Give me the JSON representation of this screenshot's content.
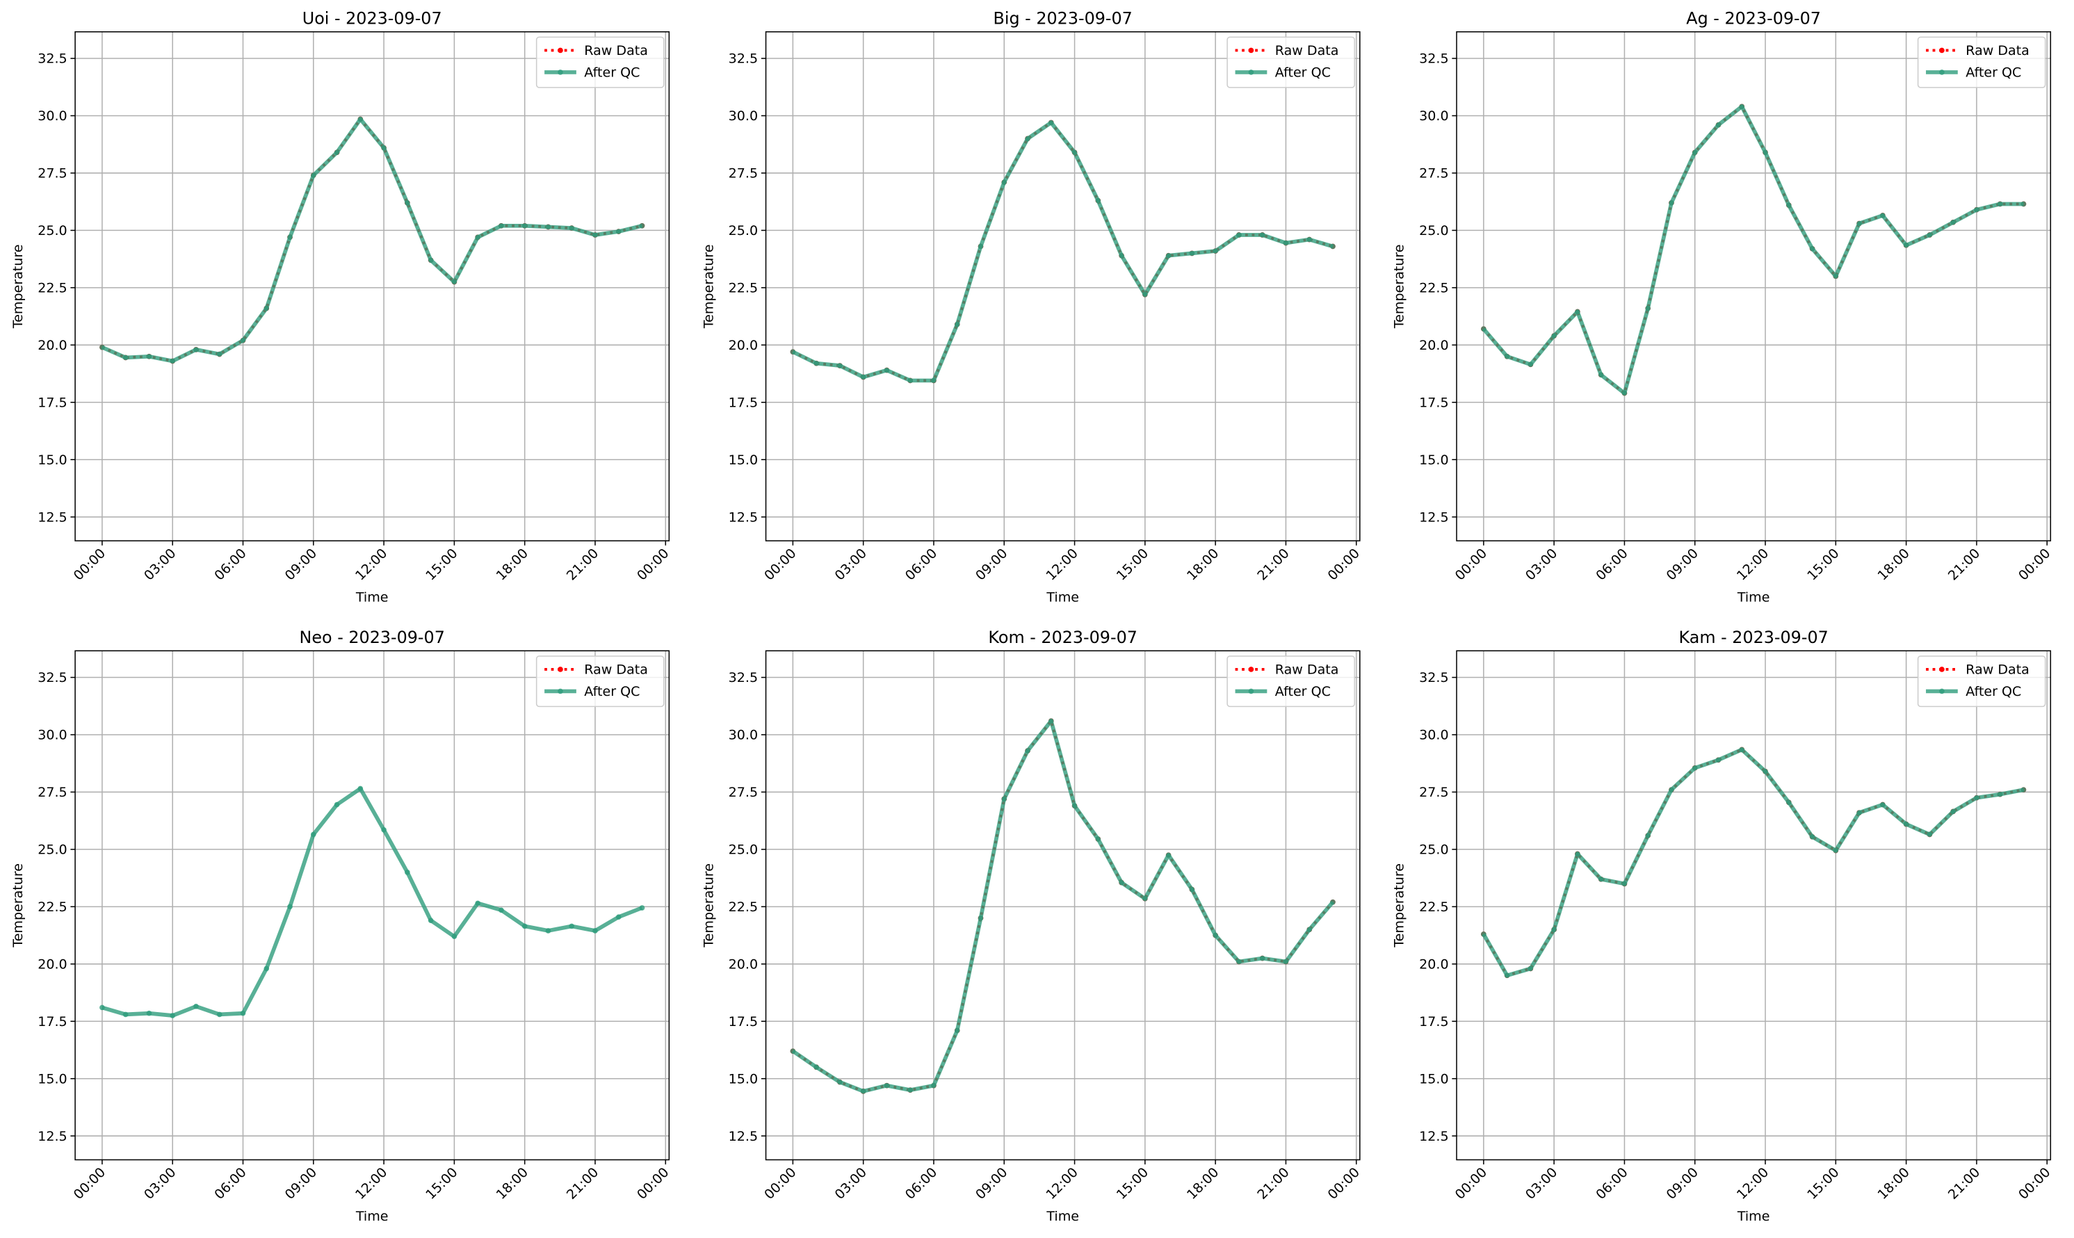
{
  "chart_data": [
    {
      "type": "line",
      "title": "Uoi - 2023-09-07",
      "xlabel": "Time",
      "ylabel": "Temperature",
      "x": [
        0,
        1,
        2,
        3,
        4,
        5,
        6,
        7,
        8,
        9,
        10,
        11,
        12,
        13,
        14,
        15,
        16,
        17,
        18,
        19,
        20,
        21,
        22,
        23
      ],
      "xlim": [
        -1.15,
        24.15
      ],
      "xticks": [
        {
          "value": 0,
          "label": "00:00"
        },
        {
          "value": 3,
          "label": "03:00"
        },
        {
          "value": 6,
          "label": "06:00"
        },
        {
          "value": 9,
          "label": "09:00"
        },
        {
          "value": 12,
          "label": "12:00"
        },
        {
          "value": 15,
          "label": "15:00"
        },
        {
          "value": 18,
          "label": "18:00"
        },
        {
          "value": 21,
          "label": "21:00"
        },
        {
          "value": 24,
          "label": "00:00"
        }
      ],
      "ylim": [
        11.46,
        33.66
      ],
      "yticks": [
        12.5,
        {
          "value": 15,
          "label": "15.0"
        },
        17.5,
        {
          "value": 20,
          "label": "20.0"
        },
        22.5,
        {
          "value": 25,
          "label": "25.0"
        },
        27.5,
        {
          "value": 30,
          "label": "30.0"
        },
        32.5
      ],
      "grid": true,
      "legend": "upper right",
      "series": [
        {
          "name": "Raw Data",
          "color": "#ff0000",
          "values": [
            19.9,
            19.45,
            19.5,
            19.3,
            19.8,
            19.6,
            20.2,
            21.6,
            24.7,
            27.4,
            28.4,
            29.85,
            28.6,
            26.2,
            23.7,
            22.75,
            24.7,
            25.2,
            25.2,
            25.15,
            25.1,
            24.8,
            24.95,
            25.2
          ]
        },
        {
          "name": "After QC",
          "color": "#2e9c7c",
          "values": [
            19.9,
            19.45,
            19.5,
            19.3,
            19.8,
            19.6,
            20.2,
            21.6,
            24.7,
            27.4,
            28.4,
            29.85,
            28.6,
            26.2,
            23.7,
            22.75,
            24.7,
            25.2,
            25.2,
            25.15,
            25.1,
            24.8,
            24.95,
            25.2
          ]
        }
      ]
    },
    {
      "type": "line",
      "title": "Big - 2023-09-07",
      "xlabel": "Time",
      "ylabel": "Temperature",
      "x": [
        0,
        1,
        2,
        3,
        4,
        5,
        6,
        7,
        8,
        9,
        10,
        11,
        12,
        13,
        14,
        15,
        16,
        17,
        18,
        19,
        20,
        21,
        22,
        23
      ],
      "xlim": [
        -1.15,
        24.15
      ],
      "xticks": [
        {
          "value": 0,
          "label": "00:00"
        },
        {
          "value": 3,
          "label": "03:00"
        },
        {
          "value": 6,
          "label": "06:00"
        },
        {
          "value": 9,
          "label": "09:00"
        },
        {
          "value": 12,
          "label": "12:00"
        },
        {
          "value": 15,
          "label": "15:00"
        },
        {
          "value": 18,
          "label": "18:00"
        },
        {
          "value": 21,
          "label": "21:00"
        },
        {
          "value": 24,
          "label": "00:00"
        }
      ],
      "ylim": [
        11.46,
        33.66
      ],
      "yticks": [
        12.5,
        {
          "value": 15,
          "label": "15.0"
        },
        17.5,
        {
          "value": 20,
          "label": "20.0"
        },
        22.5,
        {
          "value": 25,
          "label": "25.0"
        },
        27.5,
        {
          "value": 30,
          "label": "30.0"
        },
        32.5
      ],
      "grid": true,
      "legend": "upper right",
      "series": [
        {
          "name": "Raw Data",
          "color": "#ff0000",
          "values": [
            19.7,
            19.2,
            19.1,
            18.6,
            18.9,
            18.45,
            18.45,
            20.9,
            24.3,
            27.1,
            29.0,
            29.7,
            28.4,
            26.3,
            23.9,
            22.2,
            23.9,
            24.0,
            24.1,
            24.8,
            24.8,
            24.45,
            24.6,
            24.3
          ]
        },
        {
          "name": "After QC",
          "color": "#2e9c7c",
          "values": [
            19.7,
            19.2,
            19.1,
            18.6,
            18.9,
            18.45,
            18.45,
            20.9,
            24.3,
            27.1,
            29.0,
            29.7,
            28.4,
            26.3,
            23.9,
            22.2,
            23.9,
            24.0,
            24.1,
            24.8,
            24.8,
            24.45,
            24.6,
            24.3
          ]
        }
      ]
    },
    {
      "type": "line",
      "title": "Ag - 2023-09-07",
      "xlabel": "Time",
      "ylabel": "Temperature",
      "x": [
        0,
        1,
        2,
        3,
        4,
        5,
        6,
        7,
        8,
        9,
        10,
        11,
        12,
        13,
        14,
        15,
        16,
        17,
        18,
        19,
        20,
        21,
        22,
        23
      ],
      "xlim": [
        -1.15,
        24.15
      ],
      "xticks": [
        {
          "value": 0,
          "label": "00:00"
        },
        {
          "value": 3,
          "label": "03:00"
        },
        {
          "value": 6,
          "label": "06:00"
        },
        {
          "value": 9,
          "label": "09:00"
        },
        {
          "value": 12,
          "label": "12:00"
        },
        {
          "value": 15,
          "label": "15:00"
        },
        {
          "value": 18,
          "label": "18:00"
        },
        {
          "value": 21,
          "label": "21:00"
        },
        {
          "value": 24,
          "label": "00:00"
        }
      ],
      "ylim": [
        11.46,
        33.66
      ],
      "yticks": [
        12.5,
        {
          "value": 15,
          "label": "15.0"
        },
        17.5,
        {
          "value": 20,
          "label": "20.0"
        },
        22.5,
        {
          "value": 25,
          "label": "25.0"
        },
        27.5,
        {
          "value": 30,
          "label": "30.0"
        },
        32.5
      ],
      "grid": true,
      "legend": "upper right",
      "series": [
        {
          "name": "Raw Data",
          "color": "#ff0000",
          "values": [
            20.7,
            19.5,
            19.15,
            20.4,
            21.45,
            18.7,
            17.9,
            21.6,
            26.2,
            28.4,
            29.6,
            30.4,
            28.4,
            26.1,
            24.2,
            23.0,
            25.3,
            25.65,
            24.35,
            24.8,
            25.35,
            25.9,
            26.15,
            26.15
          ]
        },
        {
          "name": "After QC",
          "color": "#2e9c7c",
          "values": [
            20.7,
            19.5,
            19.15,
            20.4,
            21.45,
            18.7,
            17.9,
            21.6,
            26.2,
            28.4,
            29.6,
            30.4,
            28.4,
            26.1,
            24.2,
            23.0,
            25.3,
            25.65,
            24.35,
            24.8,
            25.35,
            25.9,
            26.15,
            26.15
          ]
        }
      ]
    },
    {
      "type": "line",
      "title": "Neo - 2023-09-07",
      "xlabel": "Time",
      "ylabel": "Temperature",
      "x": [
        0,
        1,
        2,
        3,
        4,
        5,
        6,
        7,
        8,
        9,
        10,
        11,
        12,
        13,
        14,
        15,
        16,
        17,
        18,
        19,
        20,
        21,
        22,
        23
      ],
      "xlim": [
        -1.15,
        24.15
      ],
      "xticks": [
        {
          "value": 0,
          "label": "00:00"
        },
        {
          "value": 3,
          "label": "03:00"
        },
        {
          "value": 6,
          "label": "06:00"
        },
        {
          "value": 9,
          "label": "09:00"
        },
        {
          "value": 12,
          "label": "12:00"
        },
        {
          "value": 15,
          "label": "15:00"
        },
        {
          "value": 18,
          "label": "18:00"
        },
        {
          "value": 21,
          "label": "21:00"
        },
        {
          "value": 24,
          "label": "00:00"
        }
      ],
      "ylim": [
        11.46,
        33.66
      ],
      "yticks": [
        12.5,
        {
          "value": 15,
          "label": "15.0"
        },
        17.5,
        {
          "value": 20,
          "label": "20.0"
        },
        22.5,
        {
          "value": 25,
          "label": "25.0"
        },
        27.5,
        {
          "value": 30,
          "label": "30.0"
        },
        32.5
      ],
      "grid": true,
      "legend": "upper right",
      "series": [
        {
          "name": "Raw Data",
          "color": "#ff0000",
          "values": [
            null,
            null,
            null,
            null,
            null,
            null,
            null,
            null,
            null,
            null,
            null,
            null,
            null,
            null,
            null,
            null,
            null,
            null,
            null,
            null,
            null,
            null,
            null,
            null
          ]
        },
        {
          "name": "After QC",
          "color": "#2e9c7c",
          "values": [
            18.1,
            17.8,
            17.85,
            17.75,
            18.15,
            17.8,
            17.85,
            19.8,
            22.5,
            25.65,
            26.95,
            27.65,
            25.85,
            24.0,
            21.9,
            21.2,
            22.65,
            22.35,
            21.65,
            21.45,
            21.65,
            21.45,
            22.05,
            22.45
          ]
        }
      ]
    },
    {
      "type": "line",
      "title": "Kom - 2023-09-07",
      "xlabel": "Time",
      "ylabel": "Temperature",
      "x": [
        0,
        1,
        2,
        3,
        4,
        5,
        6,
        7,
        8,
        9,
        10,
        11,
        12,
        13,
        14,
        15,
        16,
        17,
        18,
        19,
        20,
        21,
        22,
        23
      ],
      "xlim": [
        -1.15,
        24.15
      ],
      "xticks": [
        {
          "value": 0,
          "label": "00:00"
        },
        {
          "value": 3,
          "label": "03:00"
        },
        {
          "value": 6,
          "label": "06:00"
        },
        {
          "value": 9,
          "label": "09:00"
        },
        {
          "value": 12,
          "label": "12:00"
        },
        {
          "value": 15,
          "label": "15:00"
        },
        {
          "value": 18,
          "label": "18:00"
        },
        {
          "value": 21,
          "label": "21:00"
        },
        {
          "value": 24,
          "label": "00:00"
        }
      ],
      "ylim": [
        11.46,
        33.66
      ],
      "yticks": [
        12.5,
        {
          "value": 15,
          "label": "15.0"
        },
        17.5,
        {
          "value": 20,
          "label": "20.0"
        },
        22.5,
        {
          "value": 25,
          "label": "25.0"
        },
        27.5,
        {
          "value": 30,
          "label": "30.0"
        },
        32.5
      ],
      "grid": true,
      "legend": "upper right",
      "series": [
        {
          "name": "Raw Data",
          "color": "#ff0000",
          "values": [
            16.2,
            15.5,
            14.85,
            14.45,
            14.7,
            14.5,
            14.7,
            17.1,
            22.0,
            27.2,
            29.3,
            30.6,
            26.9,
            25.45,
            23.55,
            22.85,
            24.75,
            23.25,
            21.25,
            20.1,
            20.25,
            20.1,
            21.5,
            22.7
          ]
        },
        {
          "name": "After QC",
          "color": "#2e9c7c",
          "values": [
            16.2,
            15.5,
            14.85,
            14.45,
            14.7,
            14.5,
            14.7,
            17.1,
            22.0,
            27.2,
            29.3,
            30.6,
            26.9,
            25.45,
            23.55,
            22.85,
            24.75,
            23.25,
            21.25,
            20.1,
            20.25,
            20.1,
            21.5,
            22.7
          ]
        }
      ]
    },
    {
      "type": "line",
      "title": "Kam - 2023-09-07",
      "xlabel": "Time",
      "ylabel": "Temperature",
      "x": [
        0,
        1,
        2,
        3,
        4,
        5,
        6,
        7,
        8,
        9,
        10,
        11,
        12,
        13,
        14,
        15,
        16,
        17,
        18,
        19,
        20,
        21,
        22,
        23
      ],
      "xlim": [
        -1.15,
        24.15
      ],
      "xticks": [
        {
          "value": 0,
          "label": "00:00"
        },
        {
          "value": 3,
          "label": "03:00"
        },
        {
          "value": 6,
          "label": "06:00"
        },
        {
          "value": 9,
          "label": "09:00"
        },
        {
          "value": 12,
          "label": "12:00"
        },
        {
          "value": 15,
          "label": "15:00"
        },
        {
          "value": 18,
          "label": "18:00"
        },
        {
          "value": 21,
          "label": "21:00"
        },
        {
          "value": 24,
          "label": "00:00"
        }
      ],
      "ylim": [
        11.46,
        33.66
      ],
      "yticks": [
        12.5,
        {
          "value": 15,
          "label": "15.0"
        },
        17.5,
        {
          "value": 20,
          "label": "20.0"
        },
        22.5,
        {
          "value": 25,
          "label": "25.0"
        },
        27.5,
        {
          "value": 30,
          "label": "30.0"
        },
        32.5
      ],
      "grid": true,
      "legend": "upper right",
      "series": [
        {
          "name": "Raw Data",
          "color": "#ff0000",
          "values": [
            21.3,
            19.5,
            19.8,
            21.5,
            24.8,
            23.7,
            23.5,
            25.6,
            27.6,
            28.55,
            28.9,
            29.35,
            28.4,
            27.05,
            25.55,
            24.95,
            26.6,
            26.95,
            26.1,
            25.65,
            26.65,
            27.25,
            27.4,
            27.6
          ]
        },
        {
          "name": "After QC",
          "color": "#2e9c7c",
          "values": [
            21.3,
            19.5,
            19.8,
            21.5,
            24.8,
            23.7,
            23.5,
            25.6,
            27.6,
            28.55,
            28.9,
            29.35,
            28.4,
            27.05,
            25.55,
            24.95,
            26.6,
            26.95,
            26.1,
            25.65,
            26.65,
            27.25,
            27.4,
            27.6
          ]
        }
      ]
    }
  ]
}
